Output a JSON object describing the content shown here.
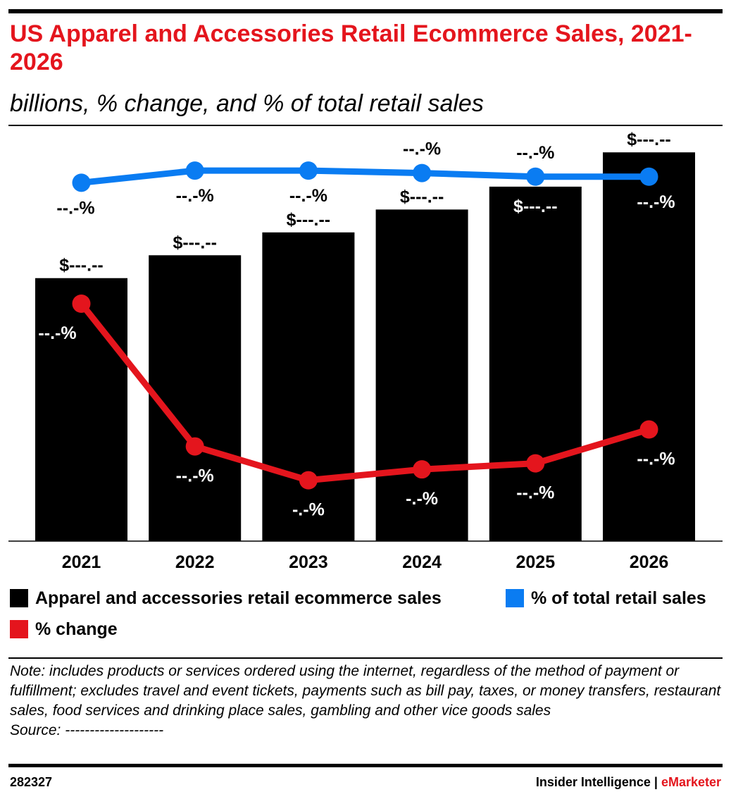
{
  "chart_data": {
    "type": "bar",
    "title": "US Apparel and Accessories Retail Ecommerce Sales, 2021-2026",
    "subtitle": "billions, % change, and % of total retail sales",
    "categories": [
      "2021",
      "2022",
      "2023",
      "2024",
      "2025",
      "2026"
    ],
    "series": [
      {
        "name": "Apparel and accessories retail ecommerce sales",
        "type": "bar",
        "color": "#000000",
        "values": [
          2.3,
          2.5,
          2.7,
          2.9,
          3.1,
          3.4
        ],
        "labels": [
          "$---.--",
          "$---.--",
          "$---.--",
          "$---.--",
          "$---.--",
          "$---.--"
        ]
      },
      {
        "name": "% of total retail sales",
        "type": "line",
        "color": "#0a7cf2",
        "values": [
          2.8,
          2.9,
          2.9,
          2.88,
          2.85,
          2.85
        ],
        "labels": [
          "--.-%",
          "--.-%",
          "--.-%",
          "--.-%",
          "--.-%",
          "--.-%"
        ]
      },
      {
        "name": "% change",
        "type": "line",
        "color": "#e4151d",
        "values": [
          1.8,
          0.62,
          0.34,
          0.43,
          0.48,
          0.76
        ],
        "labels": [
          "--.-%",
          "--.-%",
          "-.-%",
          "-.-%",
          "--.-%",
          "--.-%"
        ]
      }
    ],
    "legend": [
      {
        "label": "Apparel and accessories retail ecommerce sales",
        "color": "#000000"
      },
      {
        "label": "% of total retail sales",
        "color": "#0a7cf2"
      },
      {
        "label": "% change",
        "color": "#e4151d"
      }
    ]
  },
  "note": "Note: includes products or services ordered using the internet, regardless of the method of payment or fulfillment; excludes travel and event tickets, payments such as bill pay, taxes, or money transfers, restaurant sales, food services and drinking place sales, gambling and other vice goods sales",
  "source": "Source: --------------------",
  "footer": {
    "chart_id": "282327",
    "brand_prefix": "Insider Intelligence | ",
    "brand_accent": "eMarketer"
  }
}
